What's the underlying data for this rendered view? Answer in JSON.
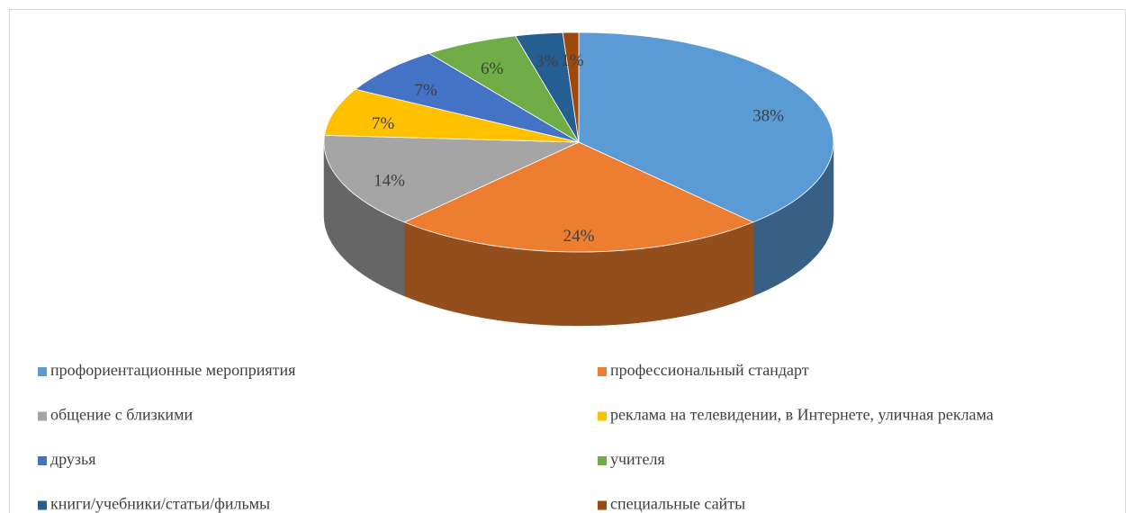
{
  "chart_data": {
    "type": "pie",
    "style": "3d",
    "categories": [
      "профориентационные мероприятия",
      "профессиональный стандарт",
      "общение с близкими",
      "реклама на телевидении, в Интернете, уличная реклама",
      "друзья",
      "учителя",
      "книги/учебники/статьи/фильмы",
      "специальные сайты"
    ],
    "values": [
      38,
      24,
      14,
      7,
      7,
      6,
      3,
      1
    ],
    "value_labels": [
      "38%",
      "24%",
      "14%",
      "7%",
      "7%",
      "6%",
      "3%",
      "1%"
    ],
    "colors": [
      "#5b9bd5",
      "#ed7d31",
      "#a5a5a5",
      "#ffc000",
      "#4472c4",
      "#70ad47",
      "#255e91",
      "#9e480e"
    ],
    "legend": "bottom"
  }
}
